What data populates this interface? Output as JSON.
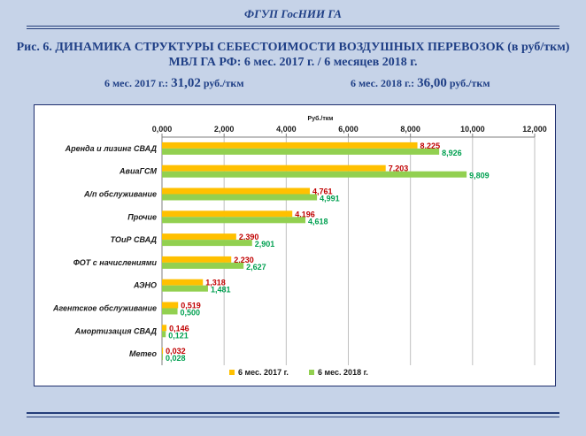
{
  "header": {
    "org": "ФГУП ГосНИИ ГА",
    "title_line1": "Рис. 6. ДИНАМИКА  СТРУКТУРЫ  СЕБЕСТОИМОСТИ  ВОЗДУШНЫХ ПЕРЕВОЗОК  (в руб/ткм)",
    "title_line2": "МВЛ   ГА РФ:   6 мес. 2017 г. / 6 месяцев 2018 г.",
    "cost_2017_label": "6 мес. 2017 г.:",
    "cost_2017_value": "31,02",
    "cost_2017_unit": "руб./ткм",
    "cost_2018_label": "6 мес. 2018 г.:",
    "cost_2018_value": "36,00",
    "cost_2018_unit": "руб./ткм"
  },
  "colors": {
    "series_2017": "#ffc000",
    "series_2018": "#92d050",
    "label_2017": "#c00000",
    "label_2018": "#00a050",
    "accent": "#1f3f86"
  },
  "chart_data": {
    "type": "bar",
    "orientation": "horizontal",
    "unit_label": "Руб./ткм",
    "xlim": [
      0,
      12
    ],
    "ticks": [
      "0,000",
      "2,000",
      "4,000",
      "6,000",
      "8,000",
      "10,000",
      "12,000"
    ],
    "grid": true,
    "legend_position": "bottom",
    "categories": [
      "Аренда и лизинг СВАД",
      "АвиаГСМ",
      "А/п обслуживание",
      "Прочие",
      "ТОиР СВАД",
      "ФОТ с начислениями",
      "АЭНО",
      "Агентское обслуживание",
      "Амортизация СВАД",
      "Метео"
    ],
    "series": [
      {
        "name": "6 мес. 2017 г.",
        "values": [
          8.225,
          7.203,
          4.761,
          4.196,
          2.39,
          2.23,
          1.318,
          0.519,
          0.146,
          0.032
        ],
        "labels": [
          "8,225",
          "7,203",
          "4,761",
          "4,196",
          "2,390",
          "2,230",
          "1,318",
          "0,519",
          "0,146",
          "0,032"
        ]
      },
      {
        "name": "6 мес. 2018 г.",
        "values": [
          8.926,
          9.809,
          4.991,
          4.618,
          2.901,
          2.627,
          1.481,
          0.5,
          0.121,
          0.028
        ],
        "labels": [
          "8,926",
          "9,809",
          "4,991",
          "4,618",
          "2,901",
          "2,627",
          "1,481",
          "0,500",
          "0,121",
          "0,028"
        ]
      }
    ]
  }
}
